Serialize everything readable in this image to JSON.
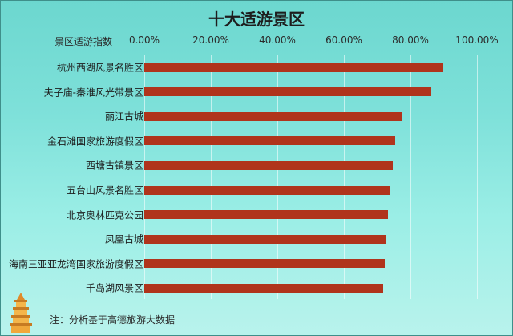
{
  "chart_data": {
    "type": "bar",
    "orientation": "horizontal",
    "title": "十大适游景区",
    "xlabel": "景区适游指数",
    "xlim": [
      0,
      1
    ],
    "x_ticks": [
      "0.00%",
      "20.00%",
      "40.00%",
      "60.00%",
      "80.00%",
      "100.00%"
    ],
    "categories": [
      "杭州西湖风景名胜区",
      "夫子庙-秦淮风光带景区",
      "丽江古城",
      "金石滩国家旅游度假区",
      "西塘古镇景区",
      "五台山风景名胜区",
      "北京奥林匹克公园",
      "凤凰古城",
      "海南三亚亚龙湾国家旅游度假区",
      "千岛湖风景区"
    ],
    "values": [
      0.898,
      0.863,
      0.777,
      0.755,
      0.746,
      0.737,
      0.733,
      0.727,
      0.722,
      0.717
    ],
    "grid": true,
    "colors": {
      "bar": "#b0341c",
      "background": "#7fe1da"
    }
  },
  "note": "注：分析基于高德旅游大数据"
}
